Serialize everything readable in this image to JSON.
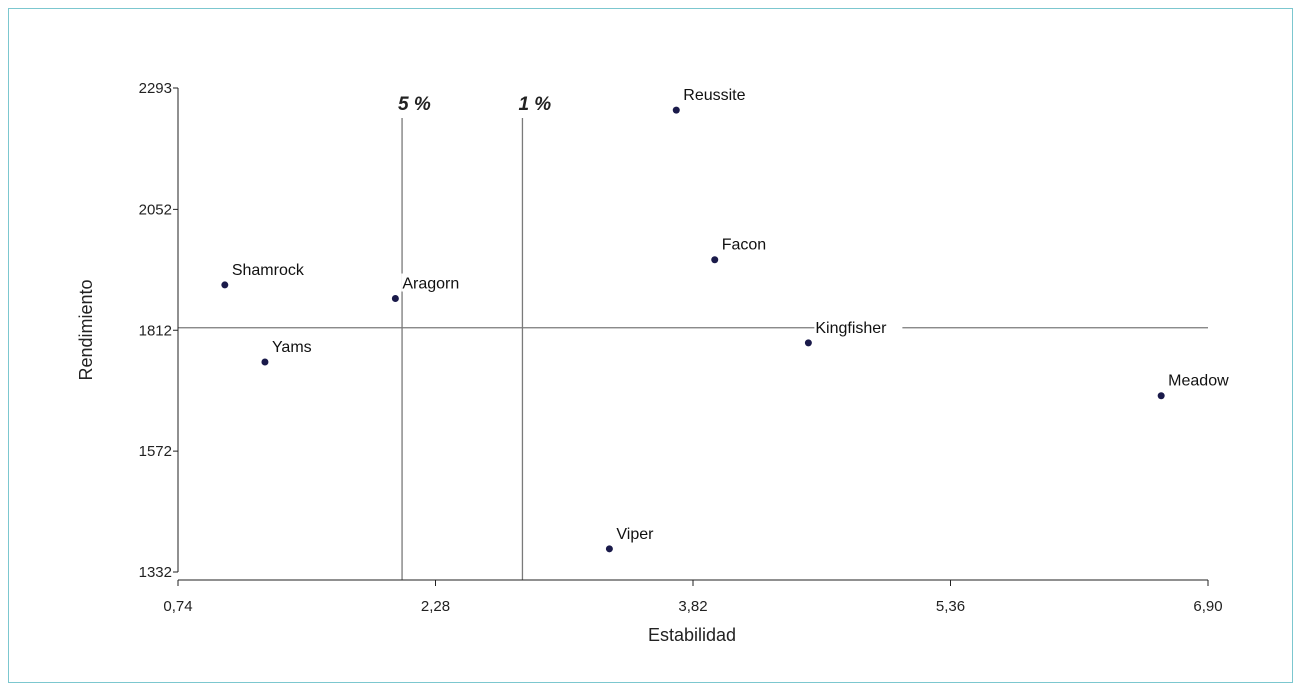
{
  "chart_data": {
    "type": "scatter",
    "xlabel": "Estabilidad",
    "ylabel": "Rendimiento",
    "xlim": [
      0.74,
      6.9
    ],
    "ylim": [
      1332,
      2293
    ],
    "x_ticks": [
      "0,74",
      "2,28",
      "3,82",
      "5,36",
      "6,90"
    ],
    "x_tick_values": [
      0.74,
      2.28,
      3.82,
      5.36,
      6.9
    ],
    "y_ticks": [
      "1332",
      "1572",
      "1812",
      "2052",
      "2293"
    ],
    "y_tick_values": [
      1332,
      1572,
      1812,
      2052,
      2293
    ],
    "points": [
      {
        "label": "Reussite",
        "x": 3.72,
        "y": 2249
      },
      {
        "label": "Facon",
        "x": 3.95,
        "y": 1952
      },
      {
        "label": "Shamrock",
        "x": 1.02,
        "y": 1902
      },
      {
        "label": "Aragorn",
        "x": 2.04,
        "y": 1875
      },
      {
        "label": "Kingfisher",
        "x": 4.51,
        "y": 1787
      },
      {
        "label": "Yams",
        "x": 1.26,
        "y": 1749
      },
      {
        "label": "Meadow",
        "x": 6.62,
        "y": 1682
      },
      {
        "label": "Viper",
        "x": 3.32,
        "y": 1378
      }
    ],
    "reference_lines": [
      {
        "orientation": "vertical",
        "x": 2.08,
        "label": "5 %"
      },
      {
        "orientation": "vertical",
        "x": 2.8,
        "label": "1 %"
      },
      {
        "orientation": "horizontal",
        "y": 1817,
        "label": ""
      }
    ],
    "point_color": "#1a1a4a",
    "line_color": "#7a7a7a"
  }
}
